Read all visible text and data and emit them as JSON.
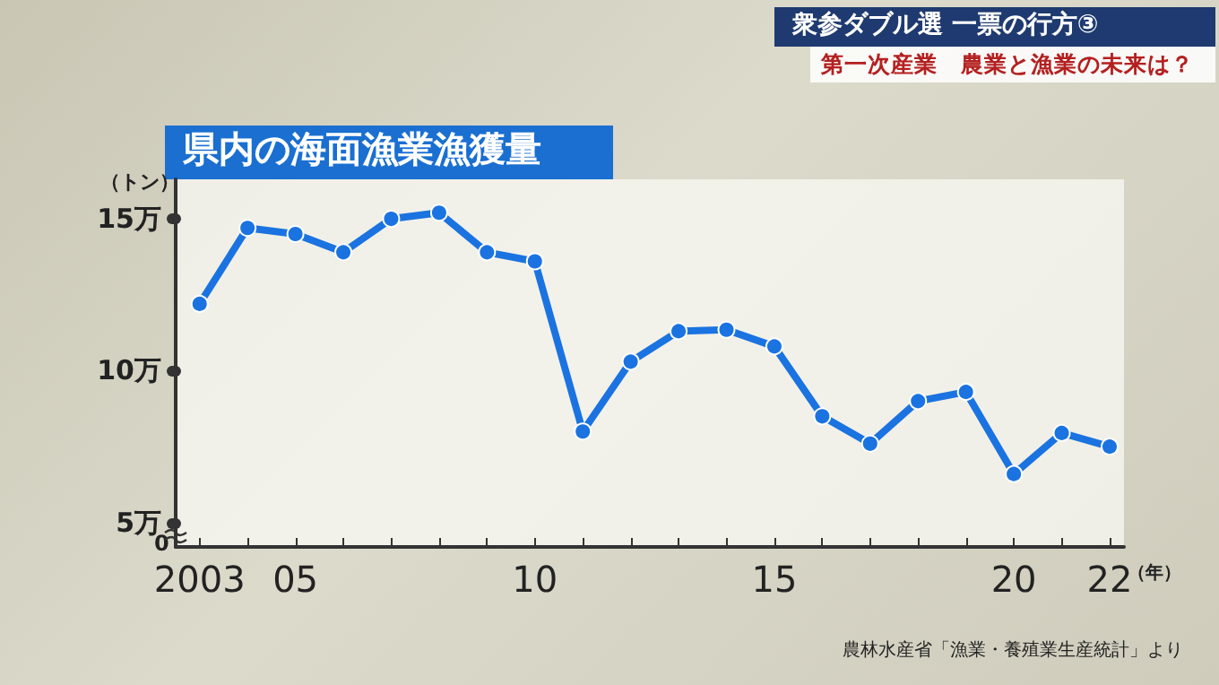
{
  "chart_data": {
    "type": "line",
    "title": "県内の海面漁業漁獲量",
    "subtitle": "第一次産業　農業と漁業の未来は？",
    "ylabel": "（トン）",
    "xlabel": "（年）",
    "annotations": [
      "衆参ダブル選 一票の行方③",
      "0",
      "農林水産省「漁業・養殖業生産統計」より"
    ],
    "x": [
      2003,
      2004,
      2005,
      2006,
      2007,
      2008,
      2009,
      2010,
      2011,
      2012,
      2013,
      2014,
      2015,
      2016,
      2017,
      2018,
      2019,
      2020,
      2021,
      2022
    ],
    "series": [
      {
        "color": "#1a73e0",
        "values": [
          12.2,
          14.7,
          14.5,
          13.9,
          15.0,
          15.2,
          13.9,
          13.6,
          8.0,
          10.3,
          11.3,
          11.35,
          10.8,
          8.5,
          7.6,
          9.0,
          9.3,
          6.6,
          7.95,
          7.5
        ]
      }
    ],
    "xlim": [
      2002.5,
      2022.3
    ],
    "xticks": [
      {
        "value": 2003,
        "label": "2003"
      },
      {
        "value": 2004,
        "label": null
      },
      {
        "value": 2005,
        "label": "05"
      },
      {
        "value": 2006,
        "label": null
      },
      {
        "value": 2007,
        "label": null
      },
      {
        "value": 2008,
        "label": null
      },
      {
        "value": 2009,
        "label": null
      },
      {
        "value": 2010,
        "label": "10"
      },
      {
        "value": 2011,
        "label": null
      },
      {
        "value": 2012,
        "label": null
      },
      {
        "value": 2013,
        "label": null
      },
      {
        "value": 2014,
        "label": null
      },
      {
        "value": 2015,
        "label": "15"
      },
      {
        "value": 2016,
        "label": null
      },
      {
        "value": 2017,
        "label": null
      },
      {
        "value": 2018,
        "label": null
      },
      {
        "value": 2019,
        "label": null
      },
      {
        "value": 2020,
        "label": "20"
      },
      {
        "value": 2021,
        "label": null
      },
      {
        "value": 2022,
        "label": "22"
      }
    ],
    "ylim": [
      4.2,
      16.3
    ],
    "yticks": [
      {
        "value": 5,
        "label": "5万"
      },
      {
        "value": 10,
        "label": "10万"
      },
      {
        "value": 15,
        "label": "15万"
      }
    ],
    "grid": false,
    "marker": "circle",
    "line_style": "solid"
  }
}
